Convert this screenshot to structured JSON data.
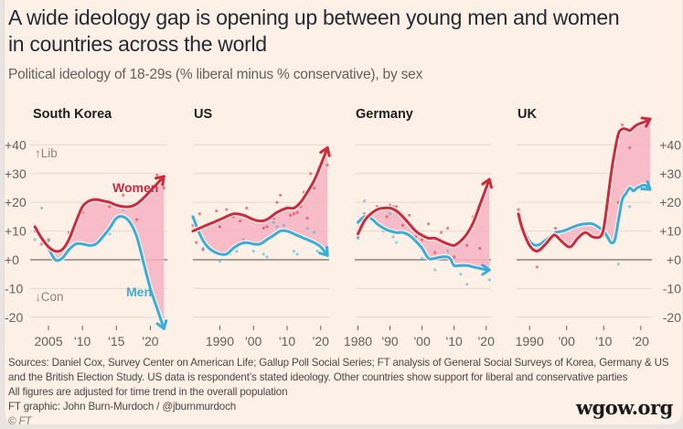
{
  "header": {
    "title_line1": "A wide ideology gap is opening up between young men and women",
    "title_line2": "in countries across the world",
    "subtitle": "Political ideology of 18-29s (% liberal minus % conservative), by sex"
  },
  "colors": {
    "background": "#fdf0e6",
    "women": "#cc2a3e",
    "men": "#3aaed8",
    "gap_fill": "#f7b3c3",
    "gridline": "#e5d9cf",
    "zero_line": "#8e8279",
    "axis_text": "#66605c"
  },
  "chart_data": {
    "type": "line",
    "title": "A wide ideology gap is opening up between young men and women in countries across the world",
    "subtitle": "Political ideology of 18-29s (% liberal minus % conservative), by sex",
    "ylabel": "% liberal minus % conservative",
    "ylim": [
      -25,
      45
    ],
    "yticks": [
      40,
      30,
      20,
      10,
      0,
      -10,
      -20
    ],
    "ytick_labels": [
      "+40",
      "+30",
      "+20",
      "+10",
      "+0",
      "-10",
      "-20"
    ],
    "y_annotations": {
      "up": "↑Lib",
      "down": "↓Con"
    },
    "grid": true,
    "series_names": [
      "Women",
      "Men"
    ],
    "panels": [
      {
        "name": "South Korea",
        "xlim": [
          2002.3,
          2022.5
        ],
        "xticks": [
          2005,
          2010,
          2015,
          2020
        ],
        "xtick_labels": [
          "2005",
          "'10",
          "'15",
          "'20"
        ],
        "label_women": "Women",
        "label_men": "Men",
        "women": {
          "x": [
            2003,
            2004,
            2005,
            2006,
            2007,
            2008,
            2009,
            2010,
            2011,
            2012,
            2013,
            2014,
            2015,
            2016,
            2017,
            2018,
            2019,
            2020,
            2021,
            2022
          ],
          "y": [
            11.5,
            7.5,
            4.5,
            3,
            3.5,
            7,
            13,
            18.5,
            20.5,
            21,
            20.5,
            20,
            19,
            18.5,
            18.5,
            19.5,
            21.5,
            24,
            26.5,
            29
          ]
        },
        "men": {
          "x": [
            2003,
            2004,
            2005,
            2006,
            2007,
            2008,
            2009,
            2010,
            2011,
            2012,
            2013,
            2014,
            2015,
            2016,
            2017,
            2018,
            2019,
            2020,
            2021,
            2022
          ],
          "y": [
            10,
            8,
            4,
            0,
            0.5,
            3.5,
            5.5,
            5.5,
            5,
            5.5,
            8,
            11,
            14.5,
            15,
            13,
            8,
            -1,
            -10,
            -17,
            -24
          ]
        },
        "women_points": [
          [
            2003,
            12
          ],
          [
            2004,
            5.5
          ],
          [
            2005,
            7
          ],
          [
            2008,
            9.5
          ],
          [
            2010,
            16.5
          ],
          [
            2014,
            18.5
          ],
          [
            2016,
            22.5
          ],
          [
            2018,
            14
          ],
          [
            2021,
            29.5
          ],
          [
            2022,
            25
          ]
        ],
        "men_points": [
          [
            2003,
            7
          ],
          [
            2004,
            18
          ],
          [
            2005,
            6.5
          ],
          [
            2014,
            9
          ],
          [
            2016,
            17.5
          ],
          [
            2021,
            -17
          ]
        ]
      },
      {
        "name": "US",
        "xlim": [
          1982,
          2022.5
        ],
        "xticks": [
          1990,
          2000,
          2010,
          2020
        ],
        "xtick_labels": [
          "1990",
          "'00",
          "'10",
          "'20"
        ],
        "women": {
          "x": [
            1982,
            1985,
            1988,
            1991,
            1994,
            1997,
            2000,
            2002,
            2004,
            2007,
            2010,
            2012,
            2014,
            2016,
            2018,
            2020,
            2022
          ],
          "y": [
            10,
            11.5,
            13,
            14.5,
            16,
            15.5,
            14,
            13.5,
            14,
            16.5,
            18,
            18,
            20,
            23.5,
            27.5,
            33,
            39
          ]
        },
        "men": {
          "x": [
            1982,
            1984,
            1986,
            1988,
            1990,
            1992,
            1994,
            1996,
            1998,
            2000,
            2002,
            2004,
            2006,
            2008,
            2010,
            2012,
            2014,
            2016,
            2018,
            2020,
            2022
          ],
          "y": [
            15,
            9,
            5,
            3,
            2,
            2,
            4,
            5.5,
            6,
            5.5,
            5.5,
            7,
            8.5,
            10,
            10,
            9,
            8,
            7,
            6,
            4.5,
            1.5
          ]
        },
        "women_points": [
          [
            1982,
            12
          ],
          [
            1983,
            6
          ],
          [
            1984,
            16
          ],
          [
            1985,
            3.5
          ],
          [
            1989,
            17
          ],
          [
            1990,
            11.5
          ],
          [
            1992,
            17.5
          ],
          [
            1994,
            15
          ],
          [
            1996,
            13.5
          ],
          [
            1998,
            18
          ],
          [
            2003,
            11
          ],
          [
            2004,
            11.5
          ],
          [
            2006,
            14.5
          ],
          [
            2007,
            20
          ],
          [
            2008,
            22.5
          ],
          [
            2009,
            18
          ],
          [
            2010,
            18.5
          ],
          [
            2011,
            15.5
          ],
          [
            2012,
            16
          ],
          [
            2013,
            16.5
          ],
          [
            2014,
            18.5
          ],
          [
            2015,
            23.5
          ],
          [
            2016,
            14.5
          ],
          [
            2017,
            30
          ],
          [
            2018,
            25
          ],
          [
            2021,
            37
          ],
          [
            2022,
            33
          ]
        ],
        "men_points": [
          [
            1983,
            13.5
          ],
          [
            1985,
            4
          ],
          [
            1990,
            -0.5
          ],
          [
            1993,
            2
          ],
          [
            1995,
            3
          ],
          [
            1997,
            7
          ],
          [
            2000,
            3
          ],
          [
            2003,
            2
          ],
          [
            2004,
            1
          ],
          [
            2006,
            13
          ],
          [
            2007,
            11.5
          ],
          [
            2009,
            12
          ],
          [
            2012,
            3
          ],
          [
            2013,
            2
          ],
          [
            2016,
            11
          ],
          [
            2018,
            9.5
          ],
          [
            2019,
            3
          ]
        ]
      },
      {
        "name": "Germany",
        "xlim": [
          1979,
          2021.5
        ],
        "xticks": [
          1980,
          1990,
          2000,
          2010,
          2020
        ],
        "xtick_labels": [
          "1980",
          "'90",
          "'00",
          "'10",
          "'20"
        ],
        "women": {
          "x": [
            1980,
            1982,
            1984,
            1986,
            1988,
            1990,
            1992,
            1994,
            1996,
            1998,
            2000,
            2002,
            2004,
            2006,
            2008,
            2010,
            2012,
            2014,
            2016,
            2018,
            2020,
            2021
          ],
          "y": [
            9,
            13.5,
            16,
            17.5,
            18,
            18,
            17,
            15,
            12.5,
            10,
            8.5,
            7.5,
            7.5,
            6.5,
            5.5,
            5,
            6.5,
            9,
            13,
            19,
            25,
            28
          ]
        },
        "men": {
          "x": [
            1980,
            1982,
            1984,
            1986,
            1988,
            1990,
            1992,
            1994,
            1996,
            1998,
            2000,
            2002,
            2004,
            2006,
            2008,
            2009,
            2010,
            2012,
            2014,
            2016,
            2018,
            2020,
            2021
          ],
          "y": [
            13,
            15,
            14.5,
            12.5,
            11,
            10,
            9.5,
            9.5,
            8.5,
            6.5,
            4,
            0.5,
            0.5,
            1,
            1,
            0,
            -2,
            -2,
            -2,
            -2.5,
            -3,
            -3.5,
            -3.5
          ]
        },
        "women_points": [
          [
            1980,
            8
          ],
          [
            1982,
            16
          ],
          [
            1986,
            18.5
          ],
          [
            1989,
            15
          ],
          [
            1990,
            19
          ],
          [
            1991,
            18.5
          ],
          [
            1992,
            18.5
          ],
          [
            1994,
            12
          ],
          [
            1996,
            15.5
          ],
          [
            1998,
            8
          ],
          [
            2000,
            7
          ],
          [
            2002,
            12.5
          ],
          [
            2004,
            2.5
          ],
          [
            2006,
            9.5
          ],
          [
            2008,
            11
          ],
          [
            2010,
            1
          ],
          [
            2014,
            5
          ],
          [
            2016,
            15
          ],
          [
            2018,
            4
          ]
        ],
        "men_points": [
          [
            1980,
            7.5
          ],
          [
            1982,
            20.5
          ],
          [
            1988,
            10
          ],
          [
            1990,
            16
          ],
          [
            1991,
            8
          ],
          [
            1992,
            6
          ],
          [
            2000,
            0.5
          ],
          [
            2004,
            -3.5
          ],
          [
            2008,
            3
          ],
          [
            2012,
            -5
          ],
          [
            2014,
            -8.5
          ],
          [
            2021,
            -7
          ]
        ]
      },
      {
        "name": "UK",
        "xlim": [
          1986.5,
          2023
        ],
        "xticks": [
          1990,
          2000,
          2010,
          2020
        ],
        "xtick_labels": [
          "1990",
          "'00",
          "'10",
          "'20"
        ],
        "women": {
          "x": [
            1987,
            1988,
            1990,
            1992,
            1994,
            1996,
            1997,
            1999,
            2001,
            2003,
            2005,
            2007,
            2009,
            2010,
            2011,
            2012,
            2013,
            2014,
            2015,
            2016,
            2017,
            2018,
            2019,
            2021,
            2022.5
          ],
          "y": [
            16,
            11,
            5,
            3,
            5,
            8,
            8.5,
            6,
            4.5,
            7.5,
            9.5,
            8,
            8,
            11,
            20,
            30,
            38,
            44,
            45.5,
            45.5,
            45,
            46,
            47,
            48,
            49
          ]
        },
        "men": {
          "x": [
            1987,
            1988,
            1990,
            1992,
            1994,
            1996,
            1997,
            1999,
            2001,
            2003,
            2005,
            2007,
            2009,
            2010,
            2011,
            2012,
            2013,
            2014,
            2015,
            2016,
            2017,
            2018,
            2019,
            2021,
            2022.5
          ],
          "y": [
            16,
            12,
            6.5,
            5,
            6.5,
            8.5,
            9.5,
            10,
            11,
            12,
            12.5,
            12.5,
            11,
            10,
            8,
            6,
            7,
            14,
            21,
            23,
            25,
            24,
            25,
            26,
            24.5
          ]
        },
        "women_points": [
          [
            1987,
            17.5
          ],
          [
            1992,
            -2.5
          ],
          [
            1997,
            11
          ],
          [
            2014,
            20
          ],
          [
            2015,
            47
          ],
          [
            2017,
            39
          ],
          [
            2019,
            47
          ]
        ],
        "men_points": [
          [
            1987,
            16.5
          ],
          [
            2010,
            13.5
          ],
          [
            2014,
            -1.5
          ],
          [
            2015,
            21.5
          ],
          [
            2017,
            18.5
          ]
        ]
      }
    ]
  },
  "footer": {
    "sources_line1": "Sources: Daniel Cox, Survey Center on American Life; Gallup Poll Social Series; FT analysis of General Social Surveys of Korea, Germany & US",
    "sources_line2": "and the British Election Study. US data is respondent’s stated ideology. Other countries show support for liberal and conservative parties",
    "note": "All figures are adjusted for time trend in the overall population",
    "credit": "FT graphic: John Burn-Murdoch / @jburnmurdoch",
    "copyright": "© FT"
  },
  "watermark": "wgow.org"
}
